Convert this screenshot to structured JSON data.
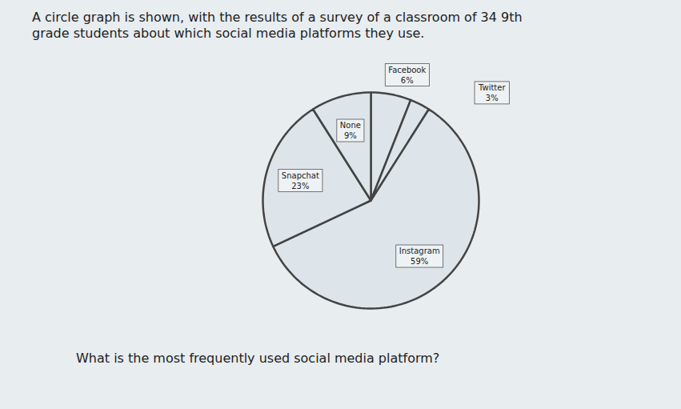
{
  "chart_data": {
    "type": "pie",
    "title": "A circle graph is shown, with the results of a survey of a classroom of 34 9th grade students about which social media platforms they use.",
    "caption": "What is the most frequently used social media platform?",
    "categories": [
      "Facebook",
      "Twitter",
      "Instagram",
      "Snapchat",
      "None"
    ],
    "values": [
      6,
      3,
      59,
      23,
      9
    ],
    "value_labels": [
      "6%",
      "3%",
      "59%",
      "23%",
      "9%"
    ],
    "color": "#dde5ea",
    "data_labels": true
  }
}
